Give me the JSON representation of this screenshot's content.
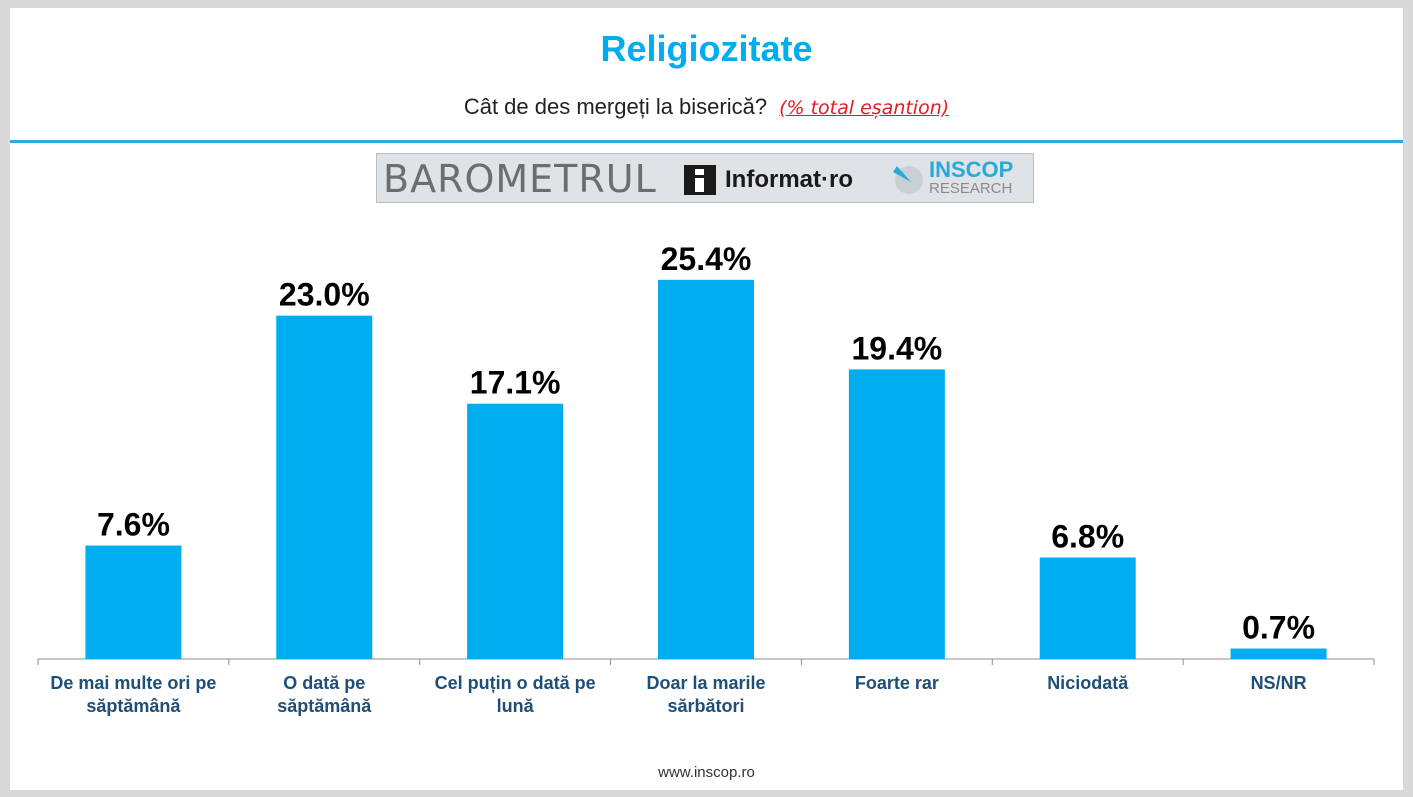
{
  "header": {
    "title": "Religiozitate",
    "question": "Cât de des mergeți la biserică?",
    "note": "(% total eșantion)"
  },
  "banner": {
    "barometrul": "BAROMETRUL",
    "informat": "Informat·ro",
    "inscop": "INSCOP",
    "research": "RESEARCH"
  },
  "footer": {
    "url": "www.inscop.ro"
  },
  "colors": {
    "bar": "#00aeef",
    "accent": "#29abe2",
    "category_label": "#1f4e79",
    "value_label": "#000000",
    "note": "#e31b23"
  },
  "chart_data": {
    "type": "bar",
    "title": "Religiozitate",
    "categories": [
      [
        "De mai multe ori pe",
        "săptămână"
      ],
      [
        "O dată pe",
        "săptămână"
      ],
      [
        "Cel puțin o dată pe",
        "lună"
      ],
      [
        "Doar la marile",
        "sărbători"
      ],
      [
        "Foarte rar"
      ],
      [
        "Niciodată"
      ],
      [
        "NS/NR"
      ]
    ],
    "values": [
      7.6,
      23.0,
      17.1,
      25.4,
      19.4,
      6.8,
      0.7
    ],
    "value_labels": [
      "7.6%",
      "23.0%",
      "17.1%",
      "25.4%",
      "19.4%",
      "6.8%",
      "0.7%"
    ],
    "ylim": [
      0,
      28
    ],
    "grid": false,
    "legend": "none",
    "xlabel": "",
    "ylabel": ""
  }
}
